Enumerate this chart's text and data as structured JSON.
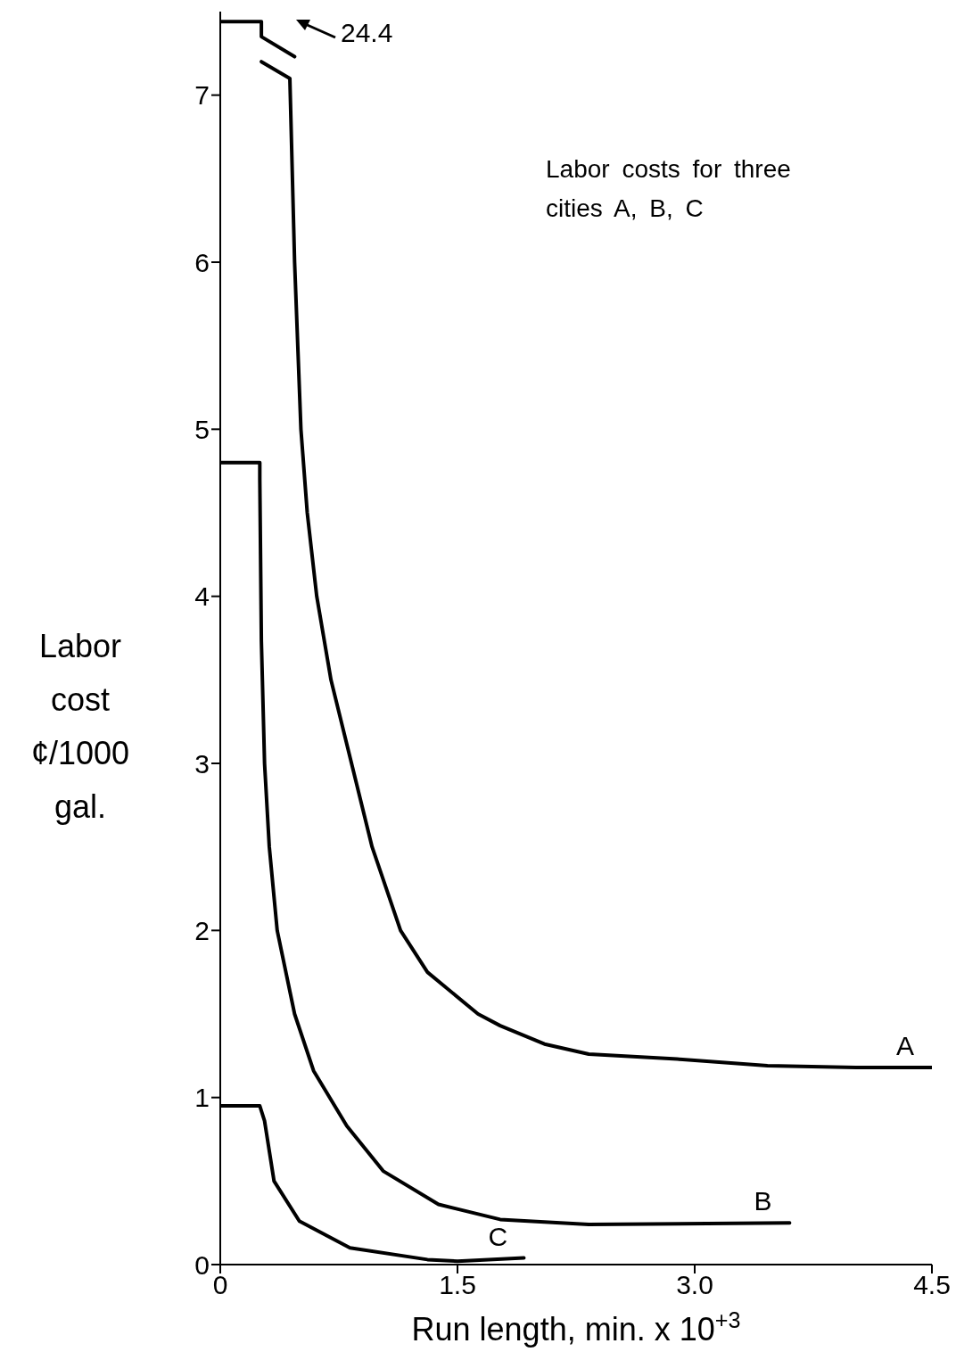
{
  "chart_data": {
    "type": "line",
    "xlabel": "Run length, min. x 10$^{+3}$",
    "ylabel": "Labor cost ¢/1000 gal.",
    "annotations": [
      "Labor costs for three cities A, B, C",
      "24.4"
    ],
    "xlim": [
      0,
      4.5
    ],
    "ylim": [
      0,
      7.5
    ],
    "xticks": [
      0,
      1.5,
      {
        "value": 3,
        "label": "3.0"
      },
      4.5
    ],
    "yticks": [
      0,
      1,
      2,
      3,
      4,
      5,
      6,
      7
    ],
    "marker": "none",
    "line_style": "solid",
    "series": [
      {
        "name": "A",
        "color": "#000000",
        "x": [
          0,
          0.26,
          0.26,
          0.47,
          0.46,
          0.26,
          0.44,
          0.47,
          0.51,
          0.55,
          0.61,
          0.7,
          0.83,
          0.96,
          1.14,
          1.31,
          1.63,
          1.77,
          2.05,
          2.33,
          2.89,
          3.46,
          4.02,
          4.5
        ],
        "values": [
          7.44,
          7.44,
          7.35,
          7.23,
          null,
          7.2,
          7.1,
          6.0,
          5.0,
          4.5,
          4.0,
          3.5,
          3.0,
          2.5,
          2.0,
          1.75,
          1.5,
          1.43,
          1.32,
          1.26,
          1.23,
          1.19,
          1.18,
          1.18
        ]
      },
      {
        "name": "B",
        "color": "#000000",
        "x": [
          0,
          0.25,
          0.25,
          0.26,
          0.28,
          0.31,
          0.36,
          0.47,
          0.59,
          0.8,
          1.03,
          1.38,
          1.77,
          2.33,
          3.6
        ],
        "values": [
          4.8,
          4.8,
          4.7,
          3.73,
          3.0,
          2.5,
          2.0,
          1.5,
          1.16,
          0.83,
          0.56,
          0.36,
          0.27,
          0.24,
          0.25
        ]
      },
      {
        "name": "C",
        "color": "#000000",
        "x": [
          0,
          0.25,
          0.28,
          0.34,
          0.5,
          0.82,
          1.31,
          1.5,
          1.92
        ],
        "values": [
          0.95,
          0.95,
          0.86,
          0.5,
          0.26,
          0.1,
          0.03,
          0.02,
          0.04
        ]
      }
    ]
  }
}
